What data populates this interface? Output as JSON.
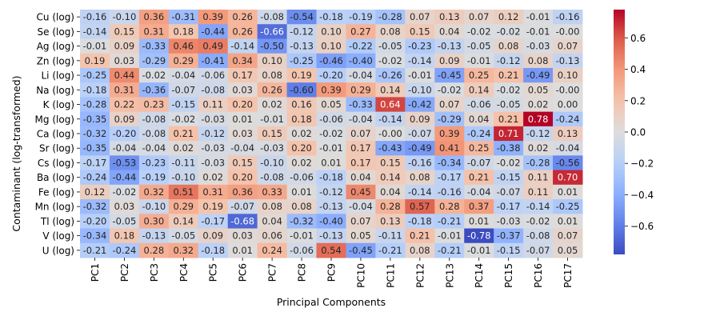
{
  "chart_data": {
    "type": "heatmap",
    "xlabel": "Principal Components",
    "ylabel": "Contaminant (log-transformed)",
    "x_categories": [
      "PC1",
      "PC2",
      "PC3",
      "PC4",
      "PC5",
      "PC6",
      "PC7",
      "PC8",
      "PC9",
      "PC10",
      "PC11",
      "PC12",
      "PC13",
      "PC14",
      "PC15",
      "PC16",
      "PC17"
    ],
    "y_categories": [
      "Cu (log)",
      "Se (log)",
      "Ag (log)",
      "Zn (log)",
      "Li (log)",
      "Na (log)",
      "K (log)",
      "Mg (log)",
      "Ca (log)",
      "Sr (log)",
      "Cs (log)",
      "Ba (log)",
      "Fe (log)",
      "Mn (log)",
      "Tl (log)",
      "V (log)",
      "U (log)"
    ],
    "values": [
      [
        -0.16,
        -0.1,
        0.36,
        -0.31,
        0.39,
        0.26,
        -0.08,
        -0.54,
        -0.18,
        -0.19,
        -0.28,
        0.07,
        0.13,
        0.07,
        0.12,
        -0.01,
        -0.16
      ],
      [
        -0.14,
        0.15,
        0.31,
        0.18,
        -0.44,
        0.26,
        -0.66,
        -0.12,
        0.1,
        0.27,
        0.08,
        0.15,
        0.04,
        -0.02,
        -0.02,
        -0.01,
        -0.0
      ],
      [
        -0.01,
        0.09,
        -0.33,
        0.46,
        0.49,
        -0.14,
        -0.5,
        -0.13,
        0.1,
        -0.22,
        -0.05,
        -0.23,
        -0.13,
        -0.05,
        0.08,
        -0.03,
        0.07
      ],
      [
        0.19,
        0.03,
        -0.29,
        0.29,
        -0.41,
        0.34,
        0.1,
        -0.25,
        -0.46,
        -0.4,
        -0.02,
        -0.14,
        0.09,
        -0.01,
        -0.12,
        0.08,
        -0.13
      ],
      [
        -0.25,
        0.44,
        -0.02,
        -0.04,
        -0.06,
        0.17,
        0.08,
        0.19,
        -0.2,
        -0.04,
        -0.26,
        -0.01,
        -0.45,
        0.25,
        0.21,
        -0.49,
        0.1
      ],
      [
        -0.18,
        0.31,
        -0.36,
        -0.07,
        -0.08,
        0.03,
        0.26,
        -0.6,
        0.39,
        0.29,
        0.14,
        -0.1,
        -0.02,
        0.14,
        -0.02,
        0.05,
        -0.0
      ],
      [
        -0.28,
        0.22,
        0.23,
        -0.15,
        0.11,
        0.2,
        0.02,
        0.16,
        0.05,
        -0.33,
        0.64,
        -0.42,
        0.07,
        -0.06,
        -0.05,
        0.02,
        0.0
      ],
      [
        -0.35,
        0.09,
        -0.08,
        -0.02,
        -0.03,
        0.01,
        -0.01,
        0.18,
        -0.06,
        -0.04,
        -0.14,
        0.09,
        -0.29,
        0.04,
        0.21,
        0.78,
        -0.24
      ],
      [
        -0.32,
        -0.2,
        -0.08,
        0.21,
        -0.12,
        0.03,
        0.15,
        0.02,
        -0.02,
        0.07,
        -0.0,
        -0.07,
        0.39,
        -0.24,
        0.71,
        -0.12,
        0.13
      ],
      [
        -0.35,
        -0.04,
        -0.04,
        0.02,
        -0.03,
        -0.04,
        -0.03,
        0.2,
        -0.01,
        0.17,
        -0.43,
        -0.49,
        0.41,
        0.25,
        -0.38,
        0.02,
        -0.04
      ],
      [
        -0.17,
        -0.53,
        -0.23,
        -0.11,
        -0.03,
        0.15,
        -0.1,
        0.02,
        0.01,
        0.17,
        0.15,
        -0.16,
        -0.34,
        -0.07,
        -0.02,
        -0.28,
        -0.56
      ],
      [
        -0.24,
        -0.44,
        -0.19,
        -0.1,
        0.02,
        0.2,
        -0.08,
        -0.06,
        -0.18,
        0.04,
        0.14,
        0.08,
        -0.17,
        0.21,
        -0.15,
        0.11,
        0.7
      ],
      [
        0.12,
        -0.02,
        0.32,
        0.51,
        0.31,
        0.36,
        0.33,
        0.01,
        -0.12,
        0.45,
        0.04,
        -0.14,
        -0.16,
        -0.04,
        -0.07,
        0.11,
        0.01
      ],
      [
        -0.32,
        0.03,
        -0.1,
        0.29,
        0.19,
        -0.07,
        0.08,
        0.08,
        -0.13,
        -0.04,
        0.28,
        0.57,
        0.28,
        0.37,
        -0.17,
        -0.14,
        -0.25
      ],
      [
        -0.2,
        -0.05,
        0.3,
        0.14,
        -0.17,
        -0.68,
        0.04,
        -0.32,
        -0.4,
        0.07,
        0.13,
        -0.18,
        -0.21,
        0.01,
        -0.03,
        -0.02,
        0.01
      ],
      [
        -0.34,
        0.18,
        -0.13,
        -0.05,
        0.09,
        0.03,
        0.06,
        -0.01,
        -0.13,
        0.05,
        -0.11,
        0.21,
        -0.01,
        -0.78,
        -0.37,
        -0.08,
        0.07
      ],
      [
        -0.21,
        -0.24,
        0.28,
        0.32,
        -0.18,
        0.01,
        0.24,
        -0.06,
        0.54,
        -0.45,
        -0.21,
        0.08,
        -0.21,
        -0.01,
        -0.15,
        -0.07,
        0.05
      ]
    ],
    "colormap": "coolwarm",
    "vmin": -0.78,
    "vmax": 0.78,
    "colorbar_ticks": [
      -0.6,
      -0.4,
      -0.2,
      0.0,
      0.2,
      0.4,
      0.6
    ],
    "colorbar_tick_labels": [
      "−0.6",
      "−0.4",
      "−0.2",
      "0.0",
      "0.2",
      "0.4",
      "0.6"
    ],
    "annotate": true,
    "grid": false,
    "legend": "colorbar-right"
  }
}
